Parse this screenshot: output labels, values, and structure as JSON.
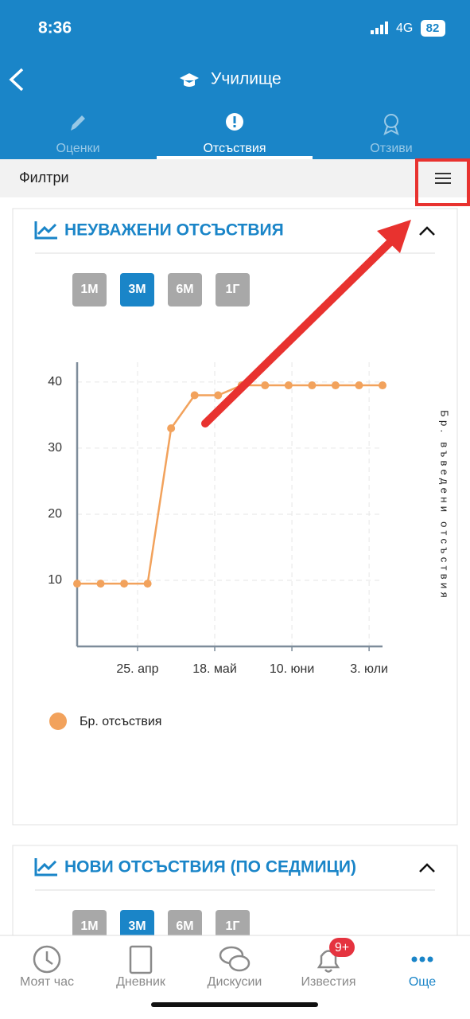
{
  "status_bar": {
    "time": "8:36",
    "network": "4G",
    "battery": "82"
  },
  "header": {
    "title": "Училище"
  },
  "tabs": [
    "Оценки",
    "Отсъствия",
    "Отзиви"
  ],
  "active_tab": 1,
  "filter_label": "Филтри",
  "cards": [
    {
      "title": "НЕУВАЖЕНИ ОТСЪСТВИЯ",
      "ranges": [
        "1М",
        "3М",
        "6М",
        "1Г"
      ],
      "active_range": 1
    },
    {
      "title": "НОВИ ОТСЪСТВИЯ (ПО СЕДМИЦИ)",
      "ranges": [
        "1М",
        "3М",
        "6М",
        "1Г"
      ],
      "active_range": 1
    }
  ],
  "chart_data": {
    "type": "line",
    "x": [
      "04-07",
      "04-14",
      "04-21",
      "04-28",
      "05-05",
      "05-12",
      "05-19",
      "05-26",
      "06-02",
      "06-09",
      "06-16",
      "06-23",
      "06-30",
      "07-07"
    ],
    "series": [
      {
        "name": "Бр. отсъствия",
        "color": "#f2a25c",
        "values": [
          9.5,
          9.5,
          9.5,
          9.5,
          33,
          38,
          38,
          39.5,
          39.5,
          39.5,
          39.5,
          39.5,
          39.5,
          39.5
        ]
      }
    ],
    "xlim": [
      "04-07",
      "07-07"
    ],
    "xticks": [
      {
        "value": "04-25",
        "label": "25. апр"
      },
      {
        "value": "05-18",
        "label": "18. май"
      },
      {
        "value": "06-10",
        "label": "10. юни"
      },
      {
        "value": "07-03",
        "label": "3. юли"
      }
    ],
    "ylim": [
      0,
      43
    ],
    "yticks": [
      10,
      20,
      30,
      40
    ],
    "y_axis_label": "Бр. въведени отсъствия",
    "grid": true
  },
  "nav": [
    "Моят час",
    "Дневник",
    "Дискусии",
    "Известия",
    "Още"
  ],
  "active_nav": 4,
  "badge": "9+"
}
